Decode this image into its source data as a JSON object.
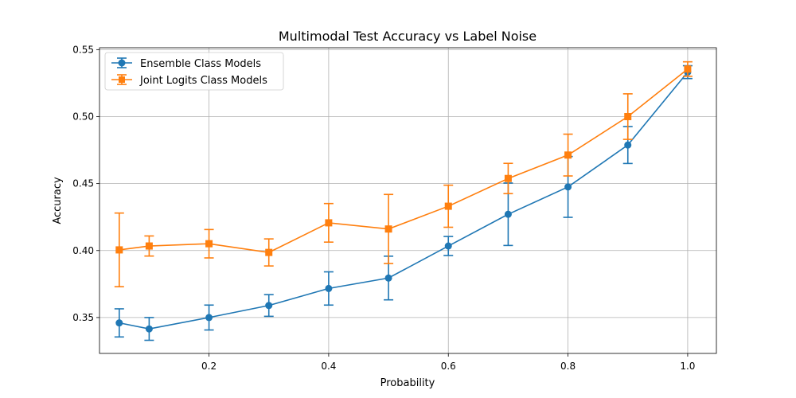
{
  "chart_data": {
    "type": "line",
    "title": "Multimodal Test Accuracy vs Label Noise",
    "xlabel": "Probability",
    "ylabel": "Accuracy",
    "xlim": [
      0.017,
      1.048
    ],
    "ylim": [
      0.3232,
      0.5514
    ],
    "x_ticks": [
      0.2,
      0.4,
      0.6,
      0.8,
      1.0
    ],
    "x_tick_labels": [
      "0.2",
      "0.4",
      "0.6",
      "0.8",
      "1.0"
    ],
    "y_ticks": [
      0.35,
      0.4,
      0.45,
      0.5,
      0.55
    ],
    "y_tick_labels": [
      "0.35",
      "0.40",
      "0.45",
      "0.50",
      "0.55"
    ],
    "grid": true,
    "legend_position": "top-left",
    "x": [
      0.05,
      0.1,
      0.2,
      0.3,
      0.4,
      0.5,
      0.6,
      0.7,
      0.8,
      0.9,
      1.0
    ],
    "series": [
      {
        "name": "Ensemble Class Models",
        "color": "#1f77b4",
        "marker": "circle",
        "values": [
          0.346,
          0.3415,
          0.35,
          0.359,
          0.3717,
          0.3795,
          0.4034,
          0.4271,
          0.4475,
          0.4788,
          0.5332
        ],
        "errors": [
          0.0105,
          0.0085,
          0.0093,
          0.0081,
          0.0124,
          0.0163,
          0.0071,
          0.0233,
          0.0227,
          0.0138,
          0.0048
        ]
      },
      {
        "name": "Joint Logits Class Models",
        "color": "#ff7f0e",
        "marker": "square",
        "values": [
          0.4005,
          0.4034,
          0.4051,
          0.3986,
          0.4207,
          0.4161,
          0.4331,
          0.4538,
          0.4713,
          0.5,
          0.5355
        ],
        "errors": [
          0.0275,
          0.0075,
          0.0106,
          0.0101,
          0.0144,
          0.0258,
          0.0157,
          0.0113,
          0.0156,
          0.017,
          0.0054
        ]
      }
    ]
  }
}
